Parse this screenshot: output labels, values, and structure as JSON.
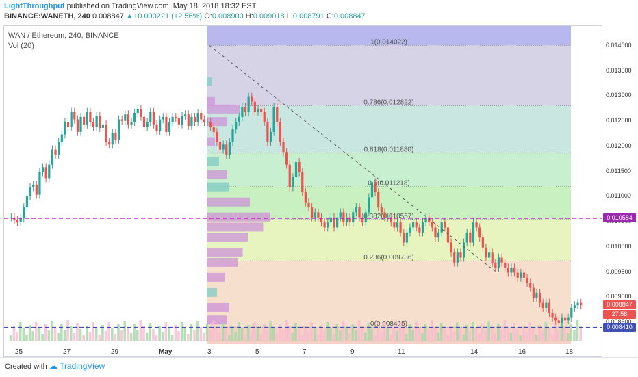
{
  "header": {
    "author": "LightThroughput",
    "published_text": "published on TradingView.com, May 18, 2018 18:32 EST",
    "symbol": "BINANCE:WANETH, 240",
    "last": "0.008847",
    "change": "+0.000221 (+2.56%)",
    "o_label": "O:",
    "o_value": "0.008900",
    "h_label": "H:",
    "h_value": "0.009018",
    "l_label": "L:",
    "l_value": "0.008791",
    "c_label": "C:",
    "c_value": "0.008847"
  },
  "legend": {
    "title": "WAN / Ethereum, 240, BINANCE",
    "volume": "Vol (20)"
  },
  "footer": {
    "created_with": "Created with",
    "brand": "TradingView"
  },
  "colors": {
    "up": "#26a69a",
    "down": "#ef5350",
    "fib_line": "#9e9e9e",
    "dash_magenta": "#cc00cc",
    "dash_blue": "#3f51b5",
    "tag_magenta": "#9c27b0",
    "tag_red": "#ef5350",
    "tag_blue": "#3f51b5"
  },
  "chart_data": {
    "type": "candlestick",
    "y_axis": {
      "ylim": [
        0.00835,
        0.0143
      ],
      "ticks": [
        "0.014000",
        "0.013500",
        "0.013000",
        "0.012500",
        "0.012000",
        "0.011500",
        "0.011000",
        "0.010500",
        "0.010000",
        "0.009500",
        "0.009000",
        "0.008500"
      ]
    },
    "x_ticks": [
      "25",
      "27",
      "29",
      "May",
      "3",
      "5",
      "7",
      "9",
      "11",
      "14",
      "16",
      "18"
    ],
    "fibonacci": [
      {
        "ratio": "1",
        "value": 0.014022,
        "label": "1(0.014022)"
      },
      {
        "ratio": "0.786",
        "value": 0.012822,
        "label": "0.786(0.012822)"
      },
      {
        "ratio": "0.618",
        "value": 0.01188,
        "label": "0.618(0.011880)"
      },
      {
        "ratio": "0.5",
        "value": 0.011218,
        "label": "0.5(0.011218)"
      },
      {
        "ratio": "0.382",
        "value": 0.010557,
        "label": "0.382(0.010557)"
      },
      {
        "ratio": "0.236",
        "value": 0.009736,
        "label": "0.236(0.009736)"
      },
      {
        "ratio": "0",
        "value": 0.008415,
        "label": "0(0.008415)"
      }
    ],
    "horizontal_lines": [
      {
        "value": 0.010584,
        "label": "0.010584",
        "style": "magenta"
      },
      {
        "value": 0.00841,
        "label": "0.008410",
        "style": "blue"
      }
    ],
    "current_price": {
      "value": 0.008847,
      "label": "0.008847",
      "countdown": "27:58"
    },
    "closes": [
      0.0106,
      0.01055,
      0.0105,
      0.01058,
      0.0108,
      0.01102,
      0.0112,
      0.01125,
      0.01105,
      0.0115,
      0.0116,
      0.01138,
      0.01165,
      0.01195,
      0.01185,
      0.0121,
      0.01225,
      0.0125,
      0.0124,
      0.0127,
      0.01255,
      0.0123,
      0.0126,
      0.01245,
      0.0127,
      0.0125,
      0.0124,
      0.01262,
      0.01238,
      0.01245,
      0.0121,
      0.01205,
      0.01228,
      0.01215,
      0.01255,
      0.01252,
      0.01265,
      0.01245,
      0.0125,
      0.01268,
      0.01275,
      0.0126,
      0.0124,
      0.0125,
      0.0127,
      0.01245,
      0.01232,
      0.01255,
      0.0126,
      0.0123,
      0.0125,
      0.0126,
      0.01258,
      0.01245,
      0.01262,
      0.01265,
      0.01242,
      0.0126,
      0.0125,
      0.01268,
      0.01255,
      0.0125,
      0.0125,
      0.0124,
      0.0123,
      0.0121,
      0.01195,
      0.01205,
      0.01185,
      0.0121,
      0.01235,
      0.0125,
      0.0126,
      0.0128,
      0.0127,
      0.013,
      0.0129,
      0.0127,
      0.01275,
      0.0127,
      0.0125,
      0.0121,
      0.0123,
      0.0128,
      0.0125,
      0.0121,
      0.0119,
      0.01165,
      0.0112,
      0.0114,
      0.0117,
      0.0115,
      0.0111,
      0.0109,
      0.0108,
      0.0106,
      0.0107,
      0.0106,
      0.0105,
      0.0104,
      0.0105,
      0.0106,
      0.0104,
      0.0106,
      0.0107,
      0.0105,
      0.0106,
      0.0105,
      0.0107,
      0.0108,
      0.0106,
      0.0105,
      0.0107,
      0.011,
      0.0113,
      0.0111,
      0.0108,
      0.0107,
      0.0106,
      0.0106,
      0.0105,
      0.0104,
      0.0105,
      0.0103,
      0.0101,
      0.0103,
      0.0104,
      0.0105,
      0.0104,
      0.0103,
      0.0105,
      0.0106,
      0.0105,
      0.0104,
      0.0102,
      0.0103,
      0.0105,
      0.0104,
      0.0101,
      0.0099,
      0.0097,
      0.0099,
      0.0098,
      0.0101,
      0.0103,
      0.0101,
      0.0105,
      0.0104,
      0.0102,
      0.01,
      0.0098,
      0.0099,
      0.0097,
      0.0096,
      0.0098,
      0.0097,
      0.0096,
      0.0095,
      0.0096,
      0.0095,
      0.0094,
      0.0095,
      0.0094,
      0.0093,
      0.0092,
      0.009,
      0.0091,
      0.0089,
      0.0088,
      0.0089,
      0.0087,
      0.0086,
      0.00855,
      0.0085,
      0.0086,
      0.00855,
      0.0086,
      0.0088,
      0.00885,
      0.0089,
      0.00885
    ],
    "volume_profile_rows": [
      {
        "price": 0.0133,
        "width": 0.05,
        "color": "up"
      },
      {
        "price": 0.0129,
        "width": 0.08,
        "color": "down"
      },
      {
        "price": 0.01275,
        "width": 0.32,
        "color": "down"
      },
      {
        "price": 0.0125,
        "width": 0.2,
        "color": "down"
      },
      {
        "price": 0.0121,
        "width": 0.08,
        "color": "down"
      },
      {
        "price": 0.0117,
        "width": 0.12,
        "color": "up"
      },
      {
        "price": 0.01145,
        "width": 0.2,
        "color": "down"
      },
      {
        "price": 0.0112,
        "width": 0.22,
        "color": "up"
      },
      {
        "price": 0.0109,
        "width": 0.42,
        "color": "down"
      },
      {
        "price": 0.0106,
        "width": 0.62,
        "color": "down"
      },
      {
        "price": 0.0104,
        "width": 0.55,
        "color": "down"
      },
      {
        "price": 0.0102,
        "width": 0.4,
        "color": "down"
      },
      {
        "price": 0.0099,
        "width": 0.35,
        "color": "down"
      },
      {
        "price": 0.0097,
        "width": 0.3,
        "color": "down"
      },
      {
        "price": 0.0094,
        "width": 0.18,
        "color": "down"
      },
      {
        "price": 0.0091,
        "width": 0.1,
        "color": "up"
      },
      {
        "price": 0.0088,
        "width": 0.22,
        "color": "down"
      },
      {
        "price": 0.00855,
        "width": 0.2,
        "color": "down"
      }
    ]
  }
}
